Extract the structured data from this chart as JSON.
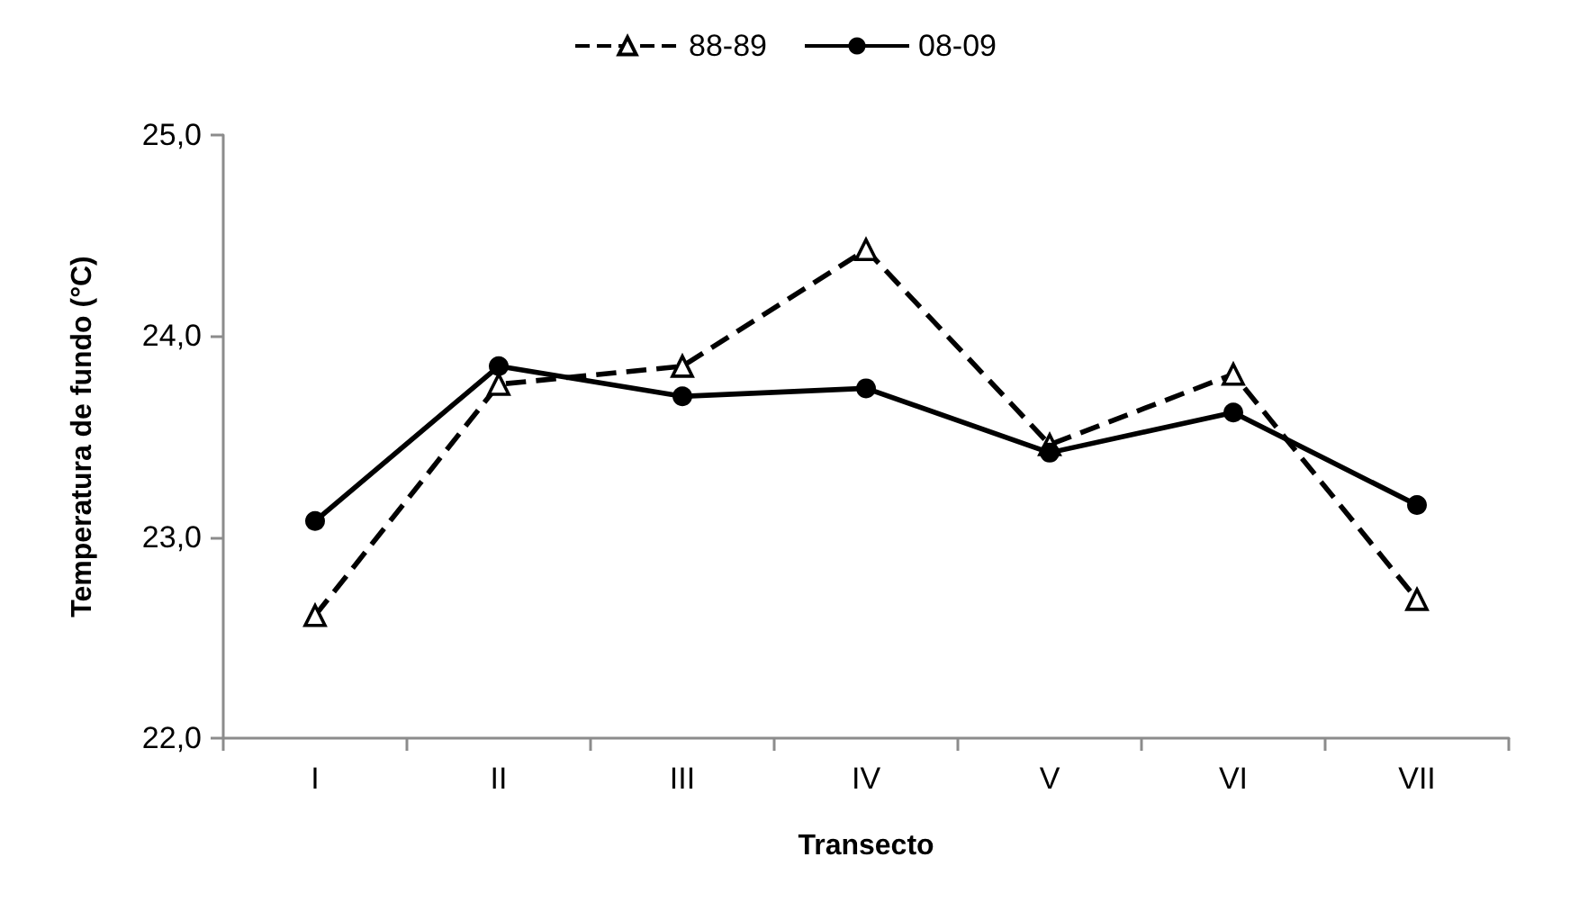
{
  "chart_data": {
    "type": "line",
    "xlabel": "Transecto",
    "ylabel": "Temperatura de fundo (°C)",
    "categories": [
      "I",
      "II",
      "III",
      "IV",
      "V",
      "VI",
      "VII"
    ],
    "series": [
      {
        "name": "88-89",
        "color": "#000000",
        "marker": "triangle",
        "line_style": "dashed",
        "values": [
          22.61,
          23.76,
          23.85,
          24.43,
          23.46,
          23.81,
          22.69
        ]
      },
      {
        "name": "08-09",
        "color": "#000000",
        "marker": "circle",
        "line_style": "solid",
        "values": [
          23.08,
          23.85,
          23.7,
          23.74,
          23.42,
          23.62,
          23.16
        ]
      }
    ],
    "ylim": [
      22,
      25
    ],
    "yticks": [
      {
        "value": 22,
        "label": "22,0"
      },
      {
        "value": 23,
        "label": "23,0"
      },
      {
        "value": 24,
        "label": "24,0"
      },
      {
        "value": 25,
        "label": "25,0"
      }
    ],
    "grid": false,
    "legend": "top"
  }
}
